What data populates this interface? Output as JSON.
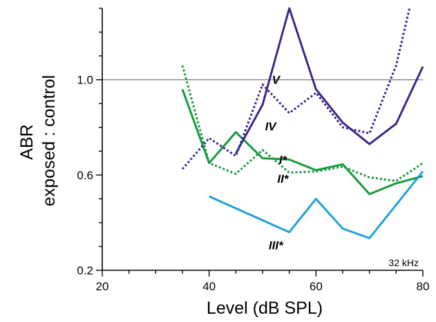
{
  "chart_data": {
    "type": "line",
    "xlabel": "Level (dB SPL)",
    "ylabel_line1": "ABR",
    "ylabel_line2": "exposed : control",
    "xlim": [
      20,
      80
    ],
    "ylim": [
      0.2,
      1.3
    ],
    "x_ticks": [
      20,
      40,
      60,
      80
    ],
    "x_tick_labels": [
      "20",
      "40",
      "60",
      "80"
    ],
    "y_ticks": [
      0.2,
      0.6,
      1.0
    ],
    "y_tick_labels": [
      "0.2",
      "0.6",
      "1.0"
    ],
    "reference_line": 1.0,
    "annotation": "32 kHz",
    "series": [
      {
        "name": "I*",
        "color": "#149a3c",
        "style": "solid",
        "points": [
          [
            35,
            0.96
          ],
          [
            40,
            0.65
          ],
          [
            45,
            0.78
          ],
          [
            50,
            0.67
          ],
          [
            55,
            0.665
          ],
          [
            60,
            0.62
          ],
          [
            65,
            0.645
          ],
          [
            70,
            0.52
          ],
          [
            75,
            0.565
          ],
          [
            80,
            0.595
          ]
        ]
      },
      {
        "name": "II*",
        "color": "#149a3c",
        "style": "dotted",
        "points": [
          [
            35,
            1.06
          ],
          [
            40,
            0.65
          ],
          [
            45,
            0.605
          ],
          [
            50,
            0.705
          ],
          [
            55,
            0.61
          ],
          [
            60,
            0.615
          ],
          [
            65,
            0.635
          ],
          [
            70,
            0.59
          ],
          [
            75,
            0.575
          ],
          [
            80,
            0.65
          ]
        ]
      },
      {
        "name": "III*",
        "color": "#1ea0dc",
        "style": "solid",
        "points": [
          [
            40,
            0.51
          ],
          [
            55,
            0.36
          ],
          [
            60,
            0.5
          ],
          [
            65,
            0.375
          ],
          [
            70,
            0.335
          ],
          [
            80,
            0.615
          ]
        ]
      },
      {
        "name": "IV",
        "color": "#342a8c",
        "style": "dotted",
        "points": [
          [
            35,
            0.625
          ],
          [
            40,
            0.755
          ],
          [
            45,
            0.68
          ],
          [
            50,
            0.98
          ],
          [
            55,
            0.86
          ],
          [
            60,
            0.945
          ],
          [
            65,
            0.8
          ],
          [
            70,
            0.775
          ],
          [
            75,
            1.06
          ],
          [
            77.5,
            1.3
          ]
        ]
      },
      {
        "name": "V",
        "color": "#342a8c",
        "style": "solid",
        "points": [
          [
            45,
            0.69
          ],
          [
            50,
            0.895
          ],
          [
            55,
            1.3
          ],
          [
            60,
            0.96
          ],
          [
            65,
            0.82
          ],
          [
            70,
            0.73
          ],
          [
            75,
            0.815
          ],
          [
            80,
            1.055
          ]
        ]
      }
    ],
    "labels": [
      {
        "text": "V",
        "x": 52.5,
        "y": 1.0,
        "color": "#000000"
      },
      {
        "text": "IV",
        "x": 51.5,
        "y": 0.805,
        "color": "#000000"
      },
      {
        "text": "I",
        "x": 53.8,
        "y": 0.665,
        "color": "#000000"
      },
      {
        "text": "II",
        "x": 53.8,
        "y": 0.585,
        "color": "#000000"
      },
      {
        "text": "III",
        "x": 52.5,
        "y": 0.305,
        "color": "#000000"
      }
    ]
  }
}
